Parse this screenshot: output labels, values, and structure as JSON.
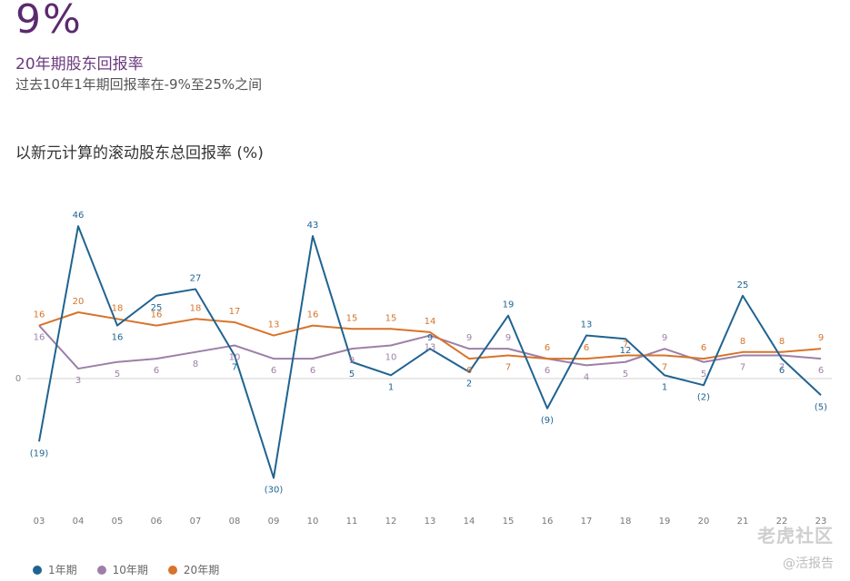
{
  "header": {
    "big_value": "9%",
    "title": "20年期股东回报率",
    "subtitle": "过去10年1年期回报率在-9%至25%之间",
    "chart_title": "以新元计算的滚动股东总回报率 (%)"
  },
  "watermark": {
    "brand": "老虎社区",
    "handle": "@活报告"
  },
  "chart_data": {
    "type": "line",
    "categories": [
      "03",
      "04",
      "05",
      "06",
      "07",
      "08",
      "09",
      "10",
      "11",
      "12",
      "13",
      "14",
      "15",
      "16",
      "17",
      "18",
      "19",
      "20",
      "21",
      "22",
      "23"
    ],
    "zero_label": "0",
    "ylim": [
      -30,
      46
    ],
    "series": [
      {
        "name": "1年期",
        "color": "#1f6391",
        "values": [
          -19,
          46,
          16,
          25,
          27,
          7,
          -30,
          43,
          5,
          1,
          9,
          2,
          19,
          -9,
          13,
          12,
          1,
          -2,
          25,
          6,
          -5
        ],
        "labels": [
          "(19)",
          "46",
          "16",
          "25",
          "27",
          "7",
          "(30)",
          "43",
          "5",
          "1",
          "9",
          "2",
          "19",
          "(9)",
          "13",
          "12",
          "1",
          "(2)",
          "25",
          "6",
          "(5)"
        ]
      },
      {
        "name": "10年期",
        "color": "#9e7fa8",
        "values": [
          16,
          3,
          5,
          6,
          8,
          10,
          6,
          6,
          9,
          10,
          13,
          9,
          9,
          6,
          4,
          5,
          9,
          5,
          7,
          7,
          6
        ],
        "labels": [
          "16",
          "3",
          "5",
          "6",
          "8",
          "10",
          "6",
          "6",
          "9",
          "10",
          "13",
          "9",
          "9",
          "6",
          "4",
          "5",
          "9",
          "5",
          "7",
          "7",
          "6"
        ]
      },
      {
        "name": "20年期",
        "color": "#d8732a",
        "values": [
          16,
          20,
          18,
          16,
          18,
          17,
          13,
          16,
          15,
          15,
          14,
          6,
          7,
          6,
          6,
          7,
          7,
          6,
          8,
          8,
          9
        ],
        "labels": [
          "16",
          "20",
          "18",
          "16",
          "18",
          "17",
          "13",
          "16",
          "15",
          "15",
          "14",
          "6",
          "7",
          "6",
          "6",
          "7",
          "7",
          "6",
          "8",
          "8",
          "9"
        ]
      }
    ]
  }
}
